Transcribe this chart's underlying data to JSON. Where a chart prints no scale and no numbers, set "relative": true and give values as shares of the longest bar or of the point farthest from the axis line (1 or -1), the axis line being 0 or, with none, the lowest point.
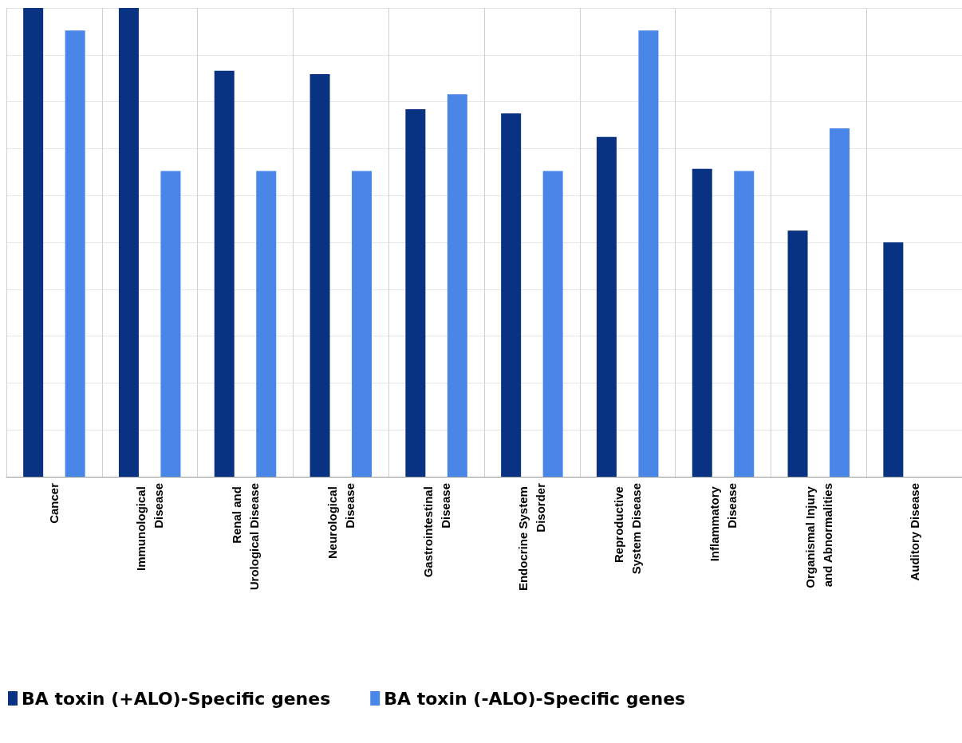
{
  "chart_data": {
    "type": "bar",
    "relative": true,
    "grid": true,
    "legend": "bottom left",
    "categories": [
      "Cancer",
      "Immunological Disease",
      "Renal and Urological Disease",
      "Neurological Disease",
      "Gastrointestinal Disease",
      "Endocrine System Disorder",
      "Reproductive System Disease",
      "Inflammatory Disease",
      "Organismal Injury and Abnormalities",
      "Auditory Disease"
    ],
    "series": [
      {
        "name": "BA toxin (+ALO)-Specific genes",
        "color": "#0a3282",
        "values": [
          1,
          1,
          0.866,
          0.859,
          0.784,
          0.775,
          0.725,
          0.657,
          0.525,
          0.5
        ]
      },
      {
        "name": "BA toxin (-ALO)-Specific genes",
        "color": "#4a86e8",
        "values": [
          0.952,
          0.652,
          0.652,
          0.652,
          0.816,
          0.652,
          0.952,
          0.652,
          0.743,
          null
        ]
      }
    ]
  }
}
